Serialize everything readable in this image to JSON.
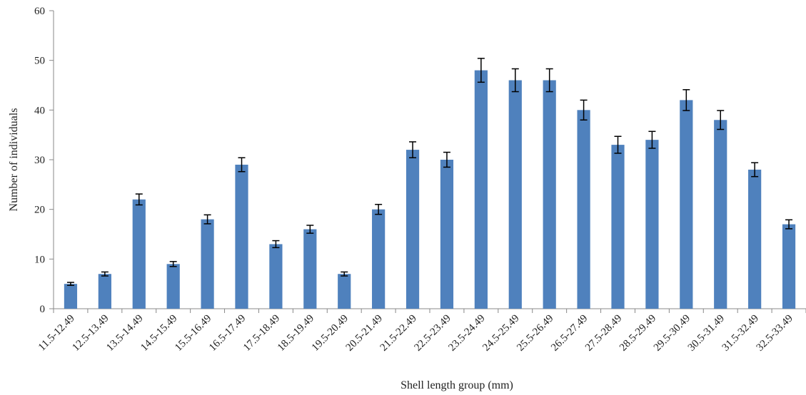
{
  "chart_data": {
    "type": "bar",
    "title": "",
    "xlabel": "Shell length group (mm)",
    "ylabel": "Number of individuals",
    "ylim": [
      0,
      60
    ],
    "yticks": [
      0,
      10,
      20,
      30,
      40,
      50,
      60
    ],
    "grid": false,
    "legend": "none",
    "bar_color": "#4f81bd",
    "error_bar_color": "#000000",
    "categories": [
      "11.5-12.49",
      "12.5-13.49",
      "13.5-14.49",
      "14.5-15.49",
      "15.5-16.49",
      "16.5-17.49",
      "17.5-18.49",
      "18.5-19.49",
      "19.5-20.49",
      "20.5-21.49",
      "21.5-22.49",
      "22.5-23.49",
      "23.5-24.49",
      "24.5-25.49",
      "25.5-26.49",
      "26.5-27.49",
      "27.5-28.49",
      "28.5-29.49",
      "29.5-30.49",
      "30.5-31.49",
      "31.5-32.49",
      "32.5-33.49"
    ],
    "values": [
      5,
      7,
      22,
      9,
      18,
      29,
      13,
      16,
      7,
      20,
      32,
      30,
      48,
      46,
      46,
      40,
      33,
      34,
      42,
      38,
      28,
      17
    ],
    "errors": [
      0.3,
      0.4,
      1.1,
      0.5,
      0.9,
      1.4,
      0.7,
      0.8,
      0.4,
      1.0,
      1.6,
      1.5,
      2.4,
      2.3,
      2.3,
      2.0,
      1.7,
      1.7,
      2.1,
      1.9,
      1.4,
      0.9
    ]
  }
}
